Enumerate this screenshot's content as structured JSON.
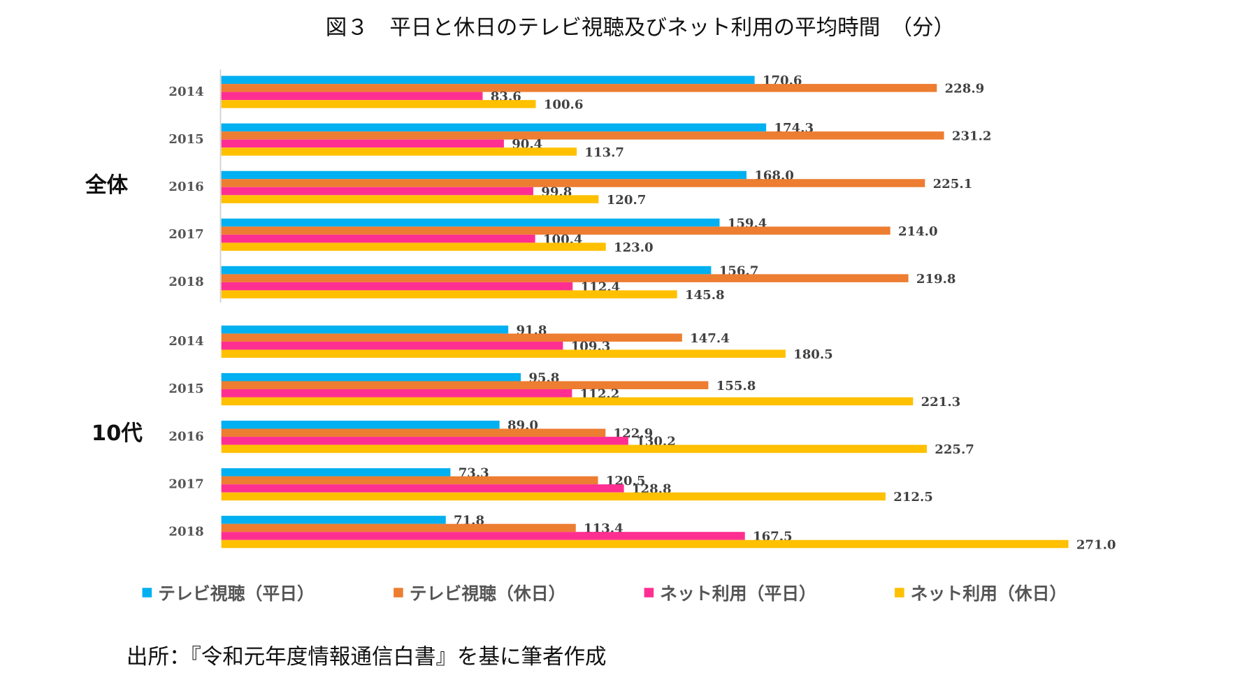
{
  "chart_data": {
    "type": "bar",
    "orientation": "horizontal",
    "title": "図３　平日と休日のテレビ視聴及びネット利用の平均時間　（分）",
    "source": "出所：『令和元年度情報通信白書』を基に筆者作成",
    "legend_position": "bottom",
    "grid": false,
    "xlim": [
      0,
      280
    ],
    "series_meta": [
      {
        "name": "テレビ視聴（平日）",
        "color": "#00B0F0"
      },
      {
        "name": "テレビ視聴（休日）",
        "color": "#ED7D31"
      },
      {
        "name": "ネット利用（平日）",
        "color": "#FF2F92"
      },
      {
        "name": "ネット利用（休日）",
        "color": "#FFC000"
      }
    ],
    "groups": [
      {
        "label": "全体",
        "categories": [
          "2014",
          "2015",
          "2016",
          "2017",
          "2018"
        ],
        "values": [
          [
            170.6,
            228.9,
            83.6,
            100.6
          ],
          [
            174.3,
            231.2,
            90.4,
            113.7
          ],
          [
            168.0,
            225.1,
            99.8,
            120.7
          ],
          [
            159.4,
            214.0,
            100.4,
            123.0
          ],
          [
            156.7,
            219.8,
            112.4,
            145.8
          ]
        ]
      },
      {
        "label": "10代",
        "categories": [
          "2014",
          "2015",
          "2016",
          "2017",
          "2018"
        ],
        "values": [
          [
            91.8,
            147.4,
            109.3,
            180.5
          ],
          [
            95.8,
            155.8,
            112.2,
            221.3
          ],
          [
            89.0,
            122.9,
            130.2,
            225.7
          ],
          [
            73.3,
            120.5,
            128.8,
            212.5
          ],
          [
            71.8,
            113.4,
            167.5,
            271.0
          ]
        ]
      }
    ]
  }
}
